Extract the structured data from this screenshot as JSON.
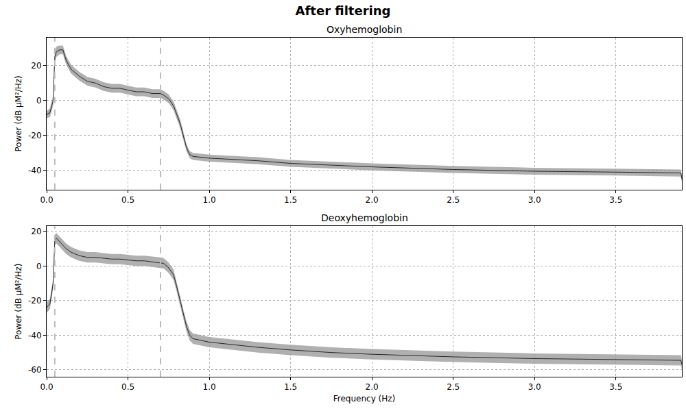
{
  "chart_data": {
    "type": "line",
    "title": "After filtering",
    "xlabel": "Frequency (Hz)",
    "x": [
      0,
      0.02,
      0.04,
      0.05,
      0.06,
      0.08,
      0.1,
      0.12,
      0.15,
      0.2,
      0.25,
      0.3,
      0.35,
      0.4,
      0.45,
      0.5,
      0.55,
      0.6,
      0.65,
      0.7,
      0.72,
      0.75,
      0.78,
      0.8,
      0.82,
      0.84,
      0.86,
      0.88,
      0.9,
      1.0,
      1.1,
      1.2,
      1.3,
      1.5,
      1.75,
      2.0,
      2.5,
      3.0,
      3.5,
      3.9,
      3.906
    ],
    "xlim": [
      0,
      3.906
    ],
    "xticks": [
      {
        "value": 0,
        "label": "0.0"
      },
      0.5,
      {
        "value": 1,
        "label": "1.0"
      },
      1.5,
      {
        "value": 2,
        "label": "2.0"
      },
      2.5,
      {
        "value": 3,
        "label": "3.0"
      },
      3.5
    ],
    "vlines": [
      0.05,
      0.7
    ],
    "grid": true,
    "panels": [
      {
        "title": "Oxyhemoglobin",
        "ylabel": "Power (dB µM²/Hz)",
        "ylim": [
          -51,
          36
        ],
        "yticks": [
          -40,
          -20,
          0,
          20
        ],
        "series": [
          {
            "color": "#000000",
            "values": [
              -8,
              -7,
              0,
              25,
              28,
              29,
              29,
              23,
              18,
              14,
              11,
              10,
              8,
              7,
              7,
              6,
              5,
              5,
              4,
              4,
              3,
              1,
              -3,
              -8,
              -13,
              -20,
              -27,
              -31,
              -32,
              -33,
              -33.5,
              -34,
              -34.5,
              -36,
              -37,
              -38,
              -39.5,
              -40.5,
              -41,
              -41.5,
              -45
            ],
            "lower": [
              -10,
              -9.5,
              -3,
              22,
              25,
              26.5,
              26.5,
              20.5,
              15.5,
              11.5,
              8.5,
              7.5,
              5.5,
              4.5,
              4.5,
              3.5,
              2.5,
              2.5,
              1.5,
              1.5,
              0.5,
              -1.5,
              -5.5,
              -10.5,
              -15.5,
              -22.5,
              -29,
              -33,
              -34,
              -35,
              -35.5,
              -36,
              -36.5,
              -38,
              -39,
              -40,
              -41.5,
              -42.5,
              -43,
              -43.5,
              -47
            ],
            "upper": [
              -6,
              -4.5,
              3,
              28,
              31,
              31.5,
              31.5,
              25.5,
              20.5,
              16.5,
              13.5,
              12.5,
              10.5,
              9.5,
              9.5,
              8.5,
              7.5,
              7.5,
              6.5,
              6.5,
              5.5,
              3.5,
              -0.5,
              -5.5,
              -10.5,
              -17.5,
              -25,
              -29,
              -30,
              -31,
              -31.5,
              -32,
              -32.5,
              -34,
              -35,
              -36,
              -37.5,
              -38.5,
              -39,
              -39.5,
              -43
            ]
          }
        ]
      },
      {
        "title": "Deoxyhemoglobin",
        "ylabel": "Power (dB µM²/Hz)",
        "ylim": [
          -64,
          23
        ],
        "yticks": [
          -60,
          -40,
          -20,
          0,
          20
        ],
        "series": [
          {
            "color": "#000000",
            "values": [
              -24,
              -22,
              -10,
              15,
              16,
              14,
              12,
              10,
              8,
              6,
              5,
              5,
              4.5,
              4,
              4,
              3.5,
              3,
              3,
              2.5,
              2,
              1.5,
              -1,
              -5,
              -12,
              -20,
              -28,
              -35,
              -40,
              -42,
              -44,
              -45,
              -46,
              -47,
              -48.5,
              -50,
              -51,
              -52.5,
              -53.5,
              -54,
              -54.5,
              -57
            ],
            "lower": [
              -27,
              -25,
              -13,
              12,
              13,
              11,
              9,
              7,
              5,
              3,
              2,
              2,
              1.5,
              1,
              1,
              0.5,
              0,
              0,
              -0.5,
              -1,
              -1.5,
              -4,
              -8,
              -15,
              -23,
              -31,
              -38,
              -43,
              -45,
              -47,
              -48,
              -49,
              -50,
              -51.5,
              -53,
              -54,
              -55.5,
              -56.5,
              -57,
              -57.5,
              -60
            ],
            "upper": [
              -21,
              -19,
              -7,
              18,
              19,
              17,
              15,
              13,
              11,
              9,
              8,
              8,
              7.5,
              7,
              7,
              6.5,
              6,
              6,
              5.5,
              5,
              4.5,
              2,
              -2,
              -9,
              -17,
              -25,
              -32,
              -37,
              -39,
              -41,
              -42,
              -43,
              -44,
              -45.5,
              -47,
              -48,
              -49.5,
              -50.5,
              -51,
              -51.5,
              -54
            ]
          }
        ]
      }
    ]
  }
}
